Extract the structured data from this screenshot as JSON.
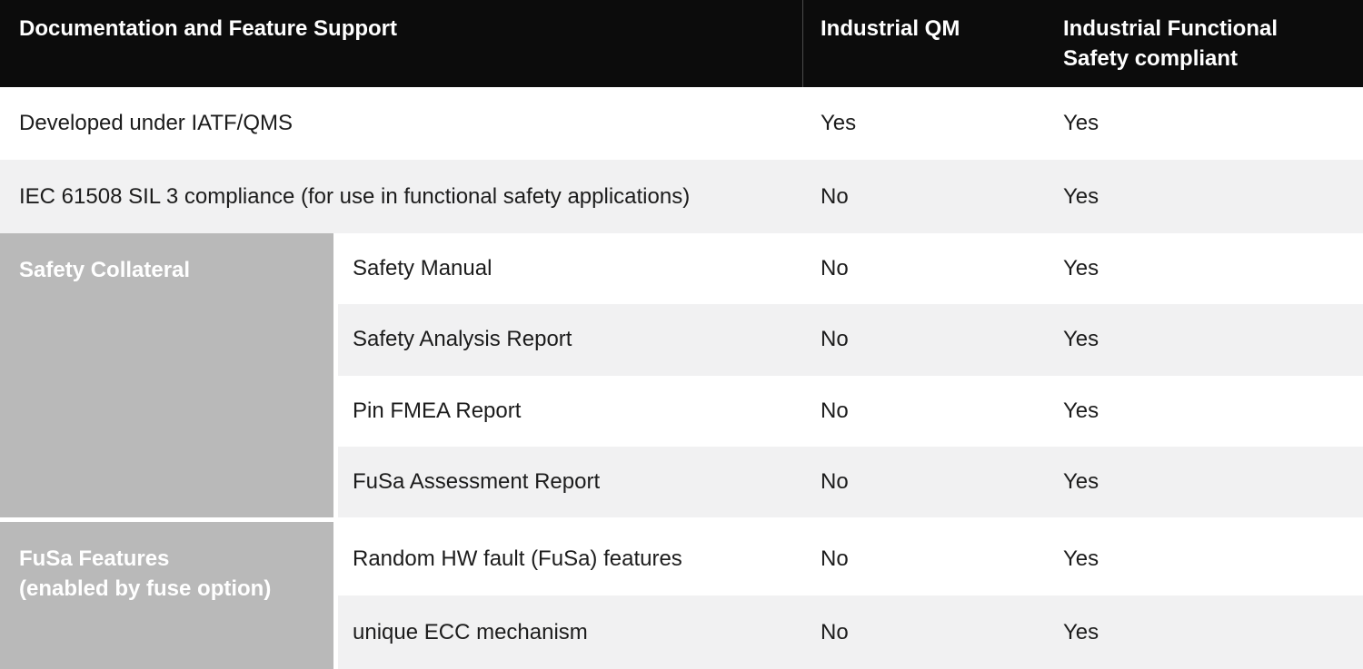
{
  "table": {
    "header": {
      "feature": "Documentation and Feature Support",
      "qm": "Industrial QM",
      "fs": "Industrial Functional\nSafety compliant"
    },
    "simple_rows": [
      {
        "feature": "Developed under IATF/QMS",
        "qm": "Yes",
        "fs": "Yes"
      },
      {
        "feature": "IEC 61508 SIL 3 compliance (for use in functional safety applications)",
        "qm": "No",
        "fs": "Yes"
      }
    ],
    "groups": [
      {
        "label": "Safety Collateral",
        "rows": [
          {
            "feature": "Safety Manual",
            "qm": "No",
            "fs": "Yes"
          },
          {
            "feature": "Safety Analysis Report",
            "qm": "No",
            "fs": "Yes"
          },
          {
            "feature": "Pin FMEA Report",
            "qm": "No",
            "fs": "Yes"
          },
          {
            "feature": "FuSa Assessment Report",
            "qm": "No",
            "fs": "Yes"
          }
        ]
      },
      {
        "label": "FuSa Features\n(enabled by fuse option)",
        "rows": [
          {
            "feature": "Random HW fault (FuSa) features",
            "qm": "No",
            "fs": "Yes"
          },
          {
            "feature": "unique ECC mechanism",
            "qm": "No",
            "fs": "Yes"
          }
        ]
      }
    ]
  },
  "colors": {
    "header_bg": "#0c0c0c",
    "header_divider": "#4b4b4b",
    "row_bg": "#ffffff",
    "row_alt_bg": "#f1f1f2",
    "group_header_bg": "#b9b9b9",
    "text": "#1c1c1c",
    "text_inverse": "#ffffff"
  }
}
